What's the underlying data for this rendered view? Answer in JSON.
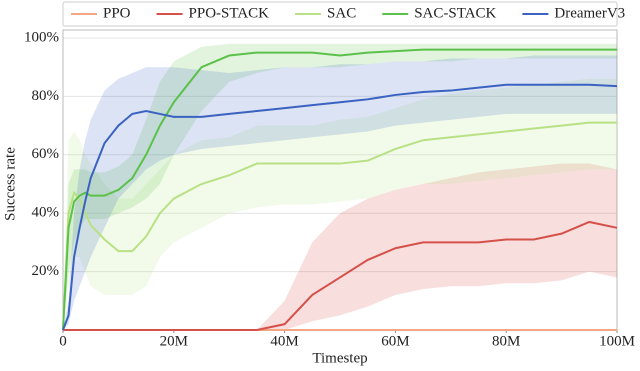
{
  "chart_data": {
    "type": "line",
    "xlabel": "Timestep",
    "ylabel": "Success rate",
    "x": [
      0,
      1000000,
      2000000,
      3000000,
      4000000,
      5000000,
      7500000,
      10000000,
      12500000,
      15000000,
      17500000,
      20000000,
      25000000,
      30000000,
      35000000,
      40000000,
      45000000,
      50000000,
      55000000,
      60000000,
      65000000,
      70000000,
      75000000,
      80000000,
      85000000,
      90000000,
      95000000,
      100000000
    ],
    "xlim": [
      0,
      100000000
    ],
    "xticks": [
      0,
      {
        "value": 20000000,
        "label": "20M"
      },
      {
        "value": 40000000,
        "label": "40M"
      },
      {
        "value": 60000000,
        "label": "60M"
      },
      {
        "value": 80000000,
        "label": "80M"
      },
      {
        "value": 100000000,
        "label": "100M"
      }
    ],
    "ylim": [
      0,
      100
    ],
    "yticks": [
      {
        "value": 20,
        "label": "20%"
      },
      {
        "value": 40,
        "label": "40%"
      },
      {
        "value": 60,
        "label": "60%"
      },
      {
        "value": 80,
        "label": "80%"
      },
      {
        "value": 100,
        "label": "100%"
      }
    ],
    "grid": true,
    "legend": "top",
    "series": [
      {
        "name": "PPO",
        "color": "#f4a582",
        "values": [
          0,
          0,
          0,
          0,
          0,
          0,
          0,
          0,
          0,
          0,
          0,
          0,
          0,
          0,
          0,
          0,
          0,
          0,
          0,
          0,
          0,
          0,
          0,
          0,
          0,
          0,
          0,
          0
        ]
      },
      {
        "name": "PPO-STACK",
        "color": "#d6504a",
        "values": [
          0,
          0,
          0,
          0,
          0,
          0,
          0,
          0,
          0,
          0,
          0,
          0,
          0,
          0,
          0,
          2,
          12,
          18,
          24,
          28,
          30,
          30,
          30,
          31,
          31,
          33,
          37,
          35
        ],
        "lower": [
          0,
          0,
          0,
          0,
          0,
          0,
          0,
          0,
          0,
          0,
          0,
          0,
          0,
          0,
          0,
          0,
          3,
          5,
          8,
          12,
          14,
          15,
          15,
          16,
          16,
          17,
          20,
          18
        ],
        "upper": [
          0,
          0,
          0,
          0,
          0,
          0,
          0,
          0,
          0,
          0,
          0,
          0,
          0,
          0,
          0,
          10,
          30,
          40,
          45,
          48,
          50,
          52,
          54,
          55,
          56,
          57,
          57,
          55
        ]
      },
      {
        "name": "SAC",
        "color": "#b8e186",
        "values": [
          0,
          40,
          47,
          45,
          40,
          36,
          31,
          27,
          27,
          32,
          40,
          45,
          50,
          53,
          57,
          57,
          57,
          57,
          58,
          62,
          65,
          66,
          67,
          68,
          69,
          70,
          71,
          71
        ],
        "lower": [
          0,
          15,
          25,
          25,
          20,
          15,
          12,
          12,
          12,
          15,
          25,
          30,
          35,
          40,
          42,
          43,
          43,
          44,
          45,
          48,
          50,
          50,
          51,
          52,
          53,
          54,
          55,
          55
        ],
        "upper": [
          0,
          65,
          68,
          65,
          60,
          57,
          50,
          45,
          45,
          50,
          55,
          60,
          65,
          66,
          70,
          70,
          70,
          72,
          73,
          76,
          79,
          81,
          82,
          83,
          84,
          85,
          86,
          86
        ]
      },
      {
        "name": "SAC-STACK",
        "color": "#5cc14a",
        "values": [
          0,
          35,
          44,
          46,
          47,
          46,
          46,
          48,
          52,
          60,
          70,
          78,
          90,
          94,
          95,
          95,
          95,
          94,
          95,
          95.5,
          96,
          96,
          96,
          96,
          96,
          96,
          96,
          96
        ],
        "lower": [
          0,
          20,
          30,
          35,
          38,
          38,
          38,
          40,
          42,
          45,
          50,
          60,
          75,
          85,
          88,
          90,
          90,
          90,
          91,
          92,
          92,
          92,
          93,
          93,
          93,
          93,
          93,
          93
        ],
        "upper": [
          0,
          50,
          55,
          55,
          55,
          54,
          54,
          56,
          60,
          72,
          85,
          92,
          97,
          98,
          98,
          98,
          98,
          98,
          98,
          98,
          98,
          98,
          98,
          98,
          98,
          98,
          98,
          98
        ]
      },
      {
        "name": "DreamerV3",
        "color": "#3a62c0",
        "values": [
          0,
          5,
          25,
          35,
          44,
          52,
          64,
          70,
          74,
          75,
          74,
          73,
          73,
          74,
          75,
          76,
          77,
          78,
          79,
          80.5,
          81.5,
          82,
          83,
          84,
          84,
          84,
          84,
          83.5
        ],
        "lower": [
          0,
          2,
          10,
          15,
          20,
          25,
          35,
          45,
          50,
          55,
          58,
          60,
          62,
          63,
          64,
          65,
          66,
          67,
          68,
          70,
          71,
          72,
          73,
          74,
          74,
          74,
          74,
          74
        ],
        "upper": [
          0,
          10,
          40,
          55,
          65,
          72,
          82,
          86,
          88,
          90,
          90,
          90,
          89,
          88,
          89,
          90,
          90,
          91,
          91,
          92,
          92,
          93,
          93,
          93,
          94,
          94,
          94,
          94
        ]
      }
    ]
  }
}
